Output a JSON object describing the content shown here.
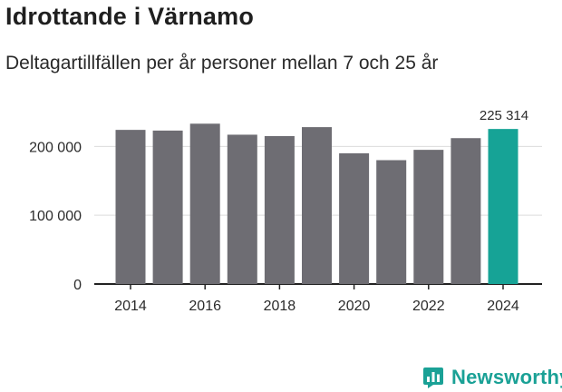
{
  "header": {
    "title": "Idrottande i Värnamo",
    "subtitle": "Deltagartillfällen per år personer mellan 7 och 25 år"
  },
  "brand": {
    "name": "Newsworthy",
    "icon": "newsworthy-logo-icon"
  },
  "colors": {
    "bar": "#6e6d73",
    "highlight": "#16a396",
    "grid": "#dcdcdc",
    "text": "#2b2b2b",
    "brand": "#1aa196"
  },
  "chart_data": {
    "type": "bar",
    "title": "Idrottande i Värnamo",
    "subtitle": "Deltagartillfällen per år personer mellan 7 och 25 år",
    "xlabel": "",
    "ylabel": "",
    "categories": [
      "2014",
      "2015",
      "2016",
      "2017",
      "2018",
      "2019",
      "2020",
      "2021",
      "2022",
      "2023",
      "2024"
    ],
    "values": [
      224000,
      223000,
      233000,
      217000,
      215000,
      228000,
      190000,
      180000,
      195000,
      212000,
      225314
    ],
    "highlight_index": 10,
    "data_labels": [
      {
        "index": 10,
        "text": "225 314"
      }
    ],
    "ylim": [
      0,
      240000
    ],
    "yticks": [
      {
        "value": 0,
        "label": "0"
      },
      {
        "value": 100000,
        "label": "100 000"
      },
      {
        "value": 200000,
        "label": "200 000"
      }
    ],
    "xticks": [
      {
        "index": 0,
        "label": "2014"
      },
      {
        "index": 2,
        "label": "2016"
      },
      {
        "index": 4,
        "label": "2018"
      },
      {
        "index": 6,
        "label": "2020"
      },
      {
        "index": 8,
        "label": "2022"
      },
      {
        "index": 10,
        "label": "2024"
      }
    ],
    "grid": true,
    "legend": "none"
  }
}
